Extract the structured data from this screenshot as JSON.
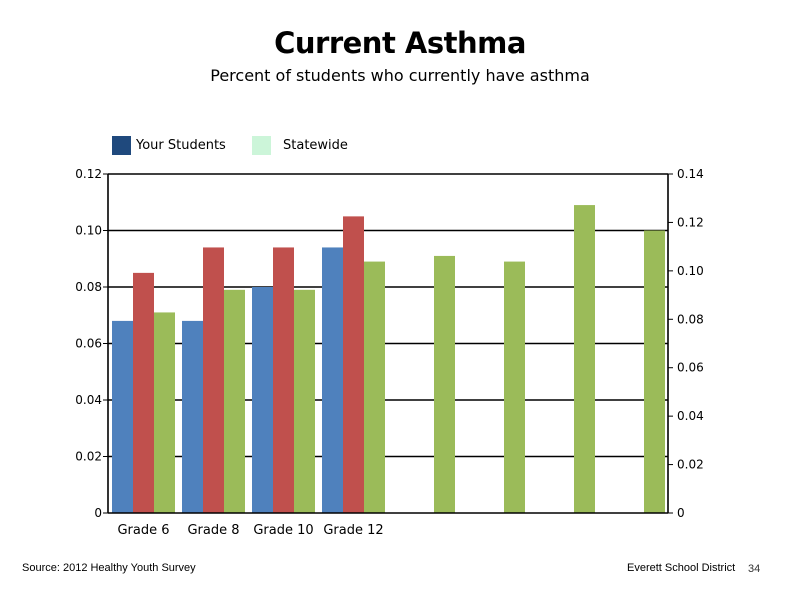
{
  "slide": {
    "title": "Current Asthma",
    "subtitle": "Percent of students who currently have asthma",
    "footer_source": "Source: 2012 Healthy Youth Survey",
    "footer_org": "Everett School District",
    "page_number": "34"
  },
  "legend": [
    {
      "label": "Your Students",
      "color": "#1f497d"
    },
    {
      "label": "Statewide",
      "color": "#ccf5d9"
    }
  ],
  "chart_data": {
    "type": "bar",
    "categories": [
      "Grade 6",
      "Grade 8",
      "Grade 10",
      "Grade 12",
      "",
      "",
      "",
      ""
    ],
    "series": [
      {
        "values": [
          0.068,
          0.068,
          0.08,
          0.094,
          null,
          null,
          null,
          null
        ],
        "color": "#4f81bd",
        "axis": "left"
      },
      {
        "values": [
          0.085,
          0.094,
          0.094,
          0.105,
          null,
          null,
          null,
          null
        ],
        "color": "#c0504d",
        "axis": "left"
      },
      {
        "values": [
          0.071,
          0.079,
          0.079,
          0.089,
          0.091,
          0.089,
          0.109,
          0.1
        ],
        "color": "#9bbb59",
        "axis": "left"
      }
    ],
    "y_left": {
      "min": 0,
      "max": 0.12,
      "ticks": [
        "0",
        "0.02",
        "0.04",
        "0.06",
        "0.08",
        "0.10",
        "0.12"
      ]
    },
    "y_right": {
      "min": 0,
      "max": 0.14,
      "ticks": [
        "0",
        "0.02",
        "0.04",
        "0.06",
        "0.08",
        "0.10",
        "0.12",
        "0.14"
      ]
    },
    "grid": true
  }
}
